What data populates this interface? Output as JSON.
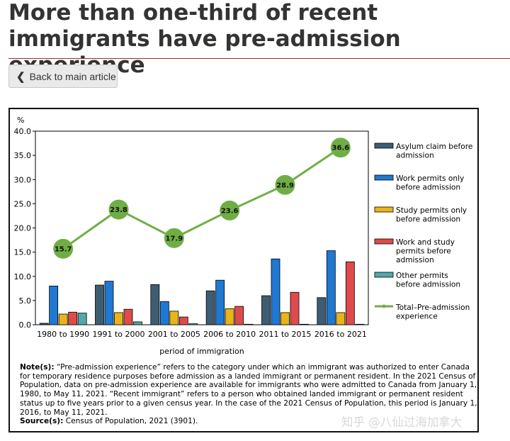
{
  "page": {
    "title": "More than one-third of recent immigrants have pre-admission experience",
    "back_label": "Back to main article",
    "watermark": "知乎 @八仙过海加拿大"
  },
  "chart_data": {
    "type": "bar",
    "unit_label": "%",
    "xlabel": "period of immigration",
    "ylim": [
      0,
      40
    ],
    "yticks": [
      "0.0",
      "5.0",
      "10.0",
      "15.0",
      "20.0",
      "25.0",
      "30.0",
      "35.0",
      "40.0"
    ],
    "categories": [
      "1980 to 1990",
      "1991 to 2000",
      "2001 to 2005",
      "2006 to 2010",
      "2011 to 2015",
      "2016 to 2021"
    ],
    "series": [
      {
        "name": "Asylum claim before admission",
        "color": "#3e5d73",
        "values": [
          0.3,
          8.2,
          8.3,
          7.0,
          6.0,
          5.6
        ]
      },
      {
        "name": "Work permits only before admission",
        "color": "#1f78d1",
        "values": [
          8.0,
          9.0,
          4.8,
          9.2,
          13.6,
          15.3
        ]
      },
      {
        "name": "Study permits only before admission",
        "color": "#e8b418",
        "values": [
          2.2,
          2.5,
          2.8,
          3.3,
          2.5,
          2.5
        ]
      },
      {
        "name": "Work and study permits before admission",
        "color": "#df4b4b",
        "values": [
          2.6,
          3.2,
          1.6,
          3.8,
          6.7,
          13.0
        ]
      },
      {
        "name": "Other permits before admission",
        "color": "#52a9a8",
        "values": [
          2.4,
          0.6,
          0.2,
          0.1,
          0.1,
          0.1
        ]
      }
    ],
    "line": {
      "name": "Total–Pre-admission experience",
      "color": "#6fae45",
      "values": [
        15.7,
        23.8,
        17.9,
        23.6,
        28.9,
        36.6
      ],
      "labels": [
        "15.7",
        "23.8",
        "17.9",
        "23.6",
        "28.9",
        "36.6"
      ]
    },
    "legend": [
      [
        "Asylum claim before",
        "admission"
      ],
      [
        "Work permits only",
        "before admission"
      ],
      [
        "Study permits only",
        "before admission"
      ],
      [
        "Work and study",
        "permits before",
        "admission"
      ],
      [
        "Other permits",
        "before admission"
      ],
      [
        "Total–Pre-admission",
        "experience"
      ]
    ],
    "legend_position": "right"
  },
  "notes": {
    "note_label": "Note(s):",
    "note_text": "“Pre-admission experience” refers to the category under which an immigrant was authorized to enter Canada for temporary residence purposes before admission as a landed immigrant or permanent resident. In the 2021 Census of Population, data on pre-admission experience are available for immigrants who were admitted to Canada from January 1, 1980, to May 11, 2021. “Recent immigrant” refers to a person who obtained landed immigrant or permanent resident status up to five years prior to a given census year. In the case of the 2021 Census of Population, this period is January 1, 2016, to May 11, 2021.",
    "source_label": "Source(s):",
    "source_text": "Census of Population, 2021 (3901)."
  }
}
